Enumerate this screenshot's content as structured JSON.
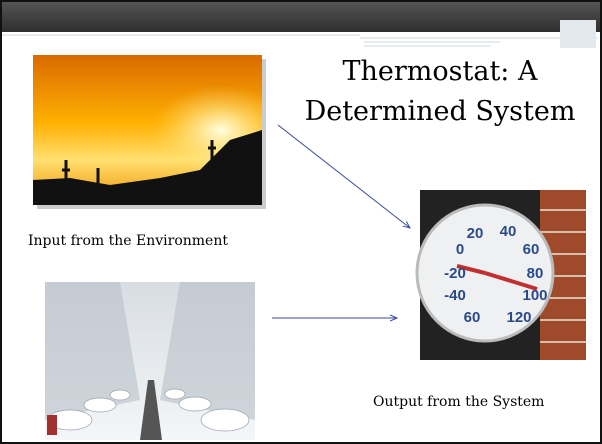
{
  "slide": {
    "title_lines": [
      "Thermostat: A",
      "Determined System"
    ],
    "input_caption": "Input from the Environment",
    "output_caption": "Output from the System",
    "dial_labels": [
      "20",
      "40",
      "0",
      "60",
      "-20",
      "80",
      "-40",
      "100",
      "60",
      "120"
    ]
  }
}
